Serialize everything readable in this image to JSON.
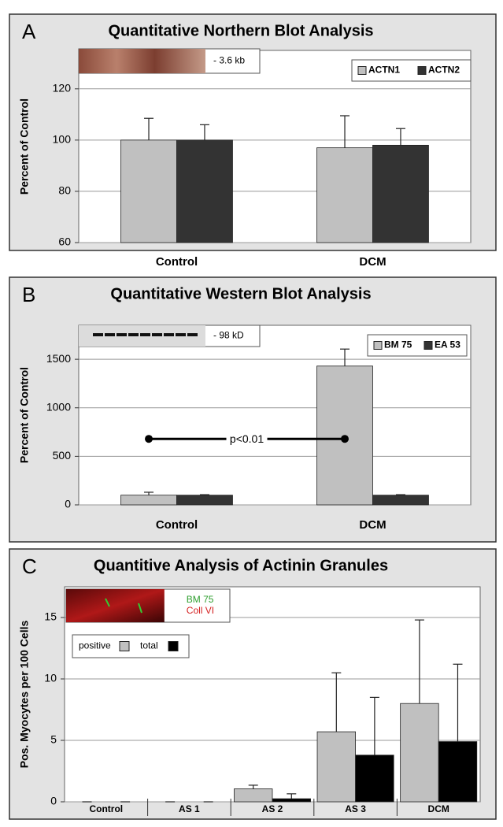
{
  "chart_data": [
    {
      "type": "bar",
      "panel_label": "A",
      "title": "Quantitative Northern Blot Analysis",
      "y_label": "Percent of Control",
      "categories": [
        "Control",
        "DCM"
      ],
      "series": [
        {
          "name": "ACTN1",
          "color": "#c0c0c0",
          "values": [
            100,
            97
          ],
          "errors": [
            8.5,
            12.5
          ]
        },
        {
          "name": "ACTN2",
          "color": "#333333",
          "values": [
            100,
            98
          ],
          "errors": [
            6,
            6.5
          ]
        }
      ],
      "ylim": [
        60,
        135
      ],
      "yticks": [
        60,
        80,
        100,
        120
      ],
      "grid": true,
      "legend": "upper right",
      "inset_labels": [
        "- 3.6 kb"
      ],
      "inset_label_colors": [
        "#000000"
      ]
    },
    {
      "type": "bar",
      "panel_label": "B",
      "title": "Quantitative Western Blot Analysis",
      "y_label": "Percent of Control",
      "categories": [
        "Control",
        "DCM"
      ],
      "series": [
        {
          "name": "BM 75",
          "color": "#c0c0c0",
          "values": [
            100,
            1430
          ],
          "errors": [
            30,
            175
          ]
        },
        {
          "name": "EA 53",
          "color": "#333333",
          "values": [
            100,
            100
          ],
          "errors": [
            5,
            5
          ]
        }
      ],
      "ylim": [
        0,
        1850
      ],
      "yticks": [
        0,
        500,
        1000,
        1500
      ],
      "grid": true,
      "legend": "upper right",
      "inset_labels": [
        "- 98 kD"
      ],
      "inset_label_colors": [
        "#000000"
      ],
      "annotation": {
        "text": "p<0.01",
        "y": 680
      }
    },
    {
      "type": "bar",
      "panel_label": "C",
      "title": "Quantitive Analysis of Actinin Granules",
      "y_label": "Pos. Myocytes per 100 Cells",
      "categories": [
        "Control",
        "AS 1",
        "AS  2",
        "AS 3",
        "DCM"
      ],
      "series": [
        {
          "name": "positive",
          "color": "#c0c0c0",
          "values": [
            0,
            0,
            1.05,
            5.7,
            8.0
          ],
          "errors": [
            0,
            0,
            0.3,
            4.8,
            6.8
          ]
        },
        {
          "name": "total",
          "color": "#000000",
          "values": [
            0,
            0,
            0.25,
            3.8,
            4.9
          ],
          "errors": [
            0,
            0,
            0.4,
            4.7,
            6.3
          ]
        }
      ],
      "ylim": [
        0,
        17.5
      ],
      "yticks": [
        0,
        5,
        10,
        15
      ],
      "grid": true,
      "legend": "upper left",
      "inset_labels": [
        "BM 75",
        "Coll VI"
      ],
      "inset_label_colors": [
        "#2e9e2e",
        "#d42020"
      ]
    }
  ]
}
